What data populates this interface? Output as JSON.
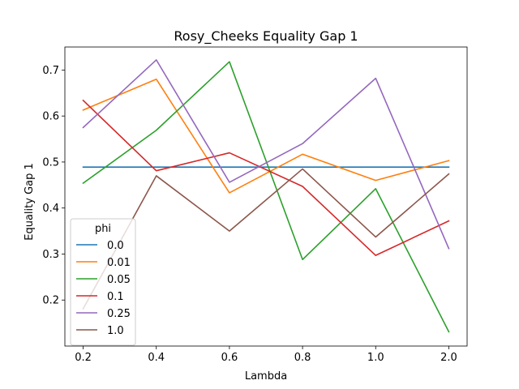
{
  "chart_data": {
    "type": "line",
    "title": "Rosy_Cheeks Equality Gap 1",
    "xlabel": "Lambda",
    "ylabel": "Equality Gap 1",
    "categories": [
      "0.2",
      "0.4",
      "0.6",
      "0.8",
      "1.0",
      "2.0"
    ],
    "y_ticks": [
      "0.2",
      "0.3",
      "0.4",
      "0.5",
      "0.6",
      "0.7"
    ],
    "ylim": [
      0.1,
      0.75
    ],
    "grid": false,
    "legend": {
      "title": "phi",
      "placement": "lower-left"
    },
    "series": [
      {
        "name": "0.0",
        "color": "#1f77b4",
        "values": [
          0.489,
          0.489,
          0.489,
          0.489,
          0.489,
          0.489
        ]
      },
      {
        "name": "0.01",
        "color": "#ff7f0e",
        "values": [
          0.613,
          0.68,
          0.433,
          0.517,
          0.46,
          0.503
        ]
      },
      {
        "name": "0.05",
        "color": "#2ca02c",
        "values": [
          0.454,
          0.569,
          0.718,
          0.288,
          0.442,
          0.131
        ]
      },
      {
        "name": "0.1",
        "color": "#d62728",
        "values": [
          0.634,
          0.481,
          0.52,
          0.447,
          0.297,
          0.372
        ]
      },
      {
        "name": "0.25",
        "color": "#9467bd",
        "values": [
          0.575,
          0.722,
          0.456,
          0.54,
          0.682,
          0.312
        ]
      },
      {
        "name": "1.0",
        "color": "#8c564b",
        "values": [
          0.181,
          0.47,
          0.35,
          0.485,
          0.337,
          0.474
        ]
      }
    ]
  }
}
